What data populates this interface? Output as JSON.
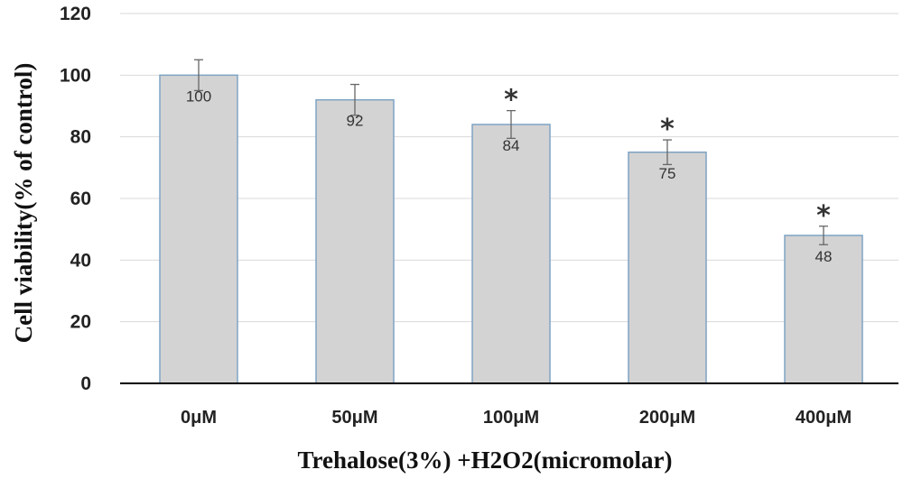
{
  "chart_data": {
    "type": "bar",
    "categories": [
      "0μM",
      "50μM",
      "100μM",
      "200μM",
      "400μM"
    ],
    "values": [
      100,
      92,
      84,
      75,
      48
    ],
    "errors": [
      5,
      5,
      4.5,
      4,
      3
    ],
    "data_labels": [
      "100",
      "92",
      "84",
      "75",
      "48"
    ],
    "significance": [
      "",
      "",
      "*",
      "*",
      "*"
    ],
    "xlabel": "Trehalose(3%) +H2O2(micromolar)",
    "ylabel": "Cell viability(% of control)",
    "ylim": [
      0,
      120
    ],
    "yticks": [
      0,
      20,
      40,
      60,
      80,
      100,
      120
    ],
    "ytick_labels": [
      "0",
      "20",
      "40",
      "60",
      "80",
      "100",
      "120"
    ],
    "grid": true,
    "colors": {
      "bar_fill": "#d3d3d3",
      "bar_edge": "#7fa3c4",
      "grid": "#d9d9d9",
      "axis": "#000000",
      "error": "#666666"
    }
  }
}
